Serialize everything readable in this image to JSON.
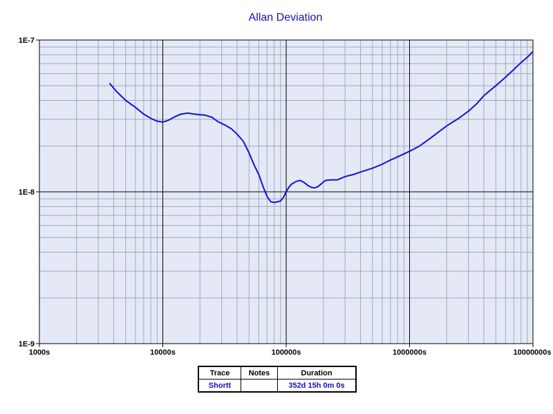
{
  "chart_data": {
    "type": "line",
    "title": "Allan Deviation",
    "xscale": "log",
    "yscale": "log",
    "xlim": [
      1000,
      10000000
    ],
    "ylim": [
      1e-09,
      1e-07
    ],
    "x_tick_labels": [
      "1000s",
      "10000s",
      "100000s",
      "1000000s",
      "10000000s"
    ],
    "y_tick_labels": [
      "1E-7",
      "1E-8",
      "1E-9"
    ],
    "grid": true,
    "colors": {
      "line": "#1010e0",
      "plot_bg": "#e4e9f5",
      "major_grid": "#000000",
      "minor_grid": "#a0a8c0"
    },
    "series": [
      {
        "x": [
          3700,
          4200,
          5000,
          6000,
          7000,
          8000,
          9000,
          10000,
          11000,
          12500,
          14000,
          16000,
          18000,
          20000,
          22000,
          25000,
          28000,
          32000,
          36000,
          40000,
          45000,
          50000,
          55000,
          60000,
          65000,
          70000,
          75000,
          80000,
          85000,
          90000,
          95000,
          100000,
          105000,
          110000,
          120000,
          130000,
          140000,
          150000,
          160000,
          170000,
          180000,
          190000,
          200000,
          210000,
          230000,
          260000,
          300000,
          350000,
          400000,
          500000,
          600000,
          700000,
          800000,
          1000000,
          1200000,
          1500000,
          2000000,
          2500000,
          3000000,
          3500000,
          4000000,
          5000000,
          6000000,
          7000000,
          8000000,
          9000000,
          10000000
        ],
        "y": [
          5.2e-08,
          4.6e-08,
          4e-08,
          3.6e-08,
          3.25e-08,
          3.05e-08,
          2.92e-08,
          2.88e-08,
          2.95e-08,
          3.12e-08,
          3.25e-08,
          3.3e-08,
          3.25e-08,
          3.22e-08,
          3.2e-08,
          3.1e-08,
          2.9e-08,
          2.75e-08,
          2.6e-08,
          2.4e-08,
          2.15e-08,
          1.8e-08,
          1.5e-08,
          1.3e-08,
          1.08e-08,
          9.3e-09,
          8.6e-09,
          8.5e-09,
          8.6e-09,
          8.7e-09,
          9.2e-09,
          1e-08,
          1.07e-08,
          1.12e-08,
          1.17e-08,
          1.19e-08,
          1.15e-08,
          1.1e-08,
          1.07e-08,
          1.06e-08,
          1.08e-08,
          1.12e-08,
          1.16e-08,
          1.19e-08,
          1.2e-08,
          1.2e-08,
          1.26e-08,
          1.3e-08,
          1.35e-08,
          1.43e-08,
          1.52e-08,
          1.62e-08,
          1.7e-08,
          1.85e-08,
          2e-08,
          2.28e-08,
          2.72e-08,
          3.05e-08,
          3.4e-08,
          3.8e-08,
          4.3e-08,
          5e-08,
          5.7e-08,
          6.4e-08,
          7.1e-08,
          7.7e-08,
          8.4e-08
        ]
      }
    ]
  },
  "legend_table": {
    "headers": {
      "trace": "Trace",
      "notes": "Notes",
      "duration": "Duration"
    },
    "rows": [
      {
        "trace": "Shortt",
        "notes": "",
        "duration": "352d 15h 0m 0s"
      }
    ]
  }
}
